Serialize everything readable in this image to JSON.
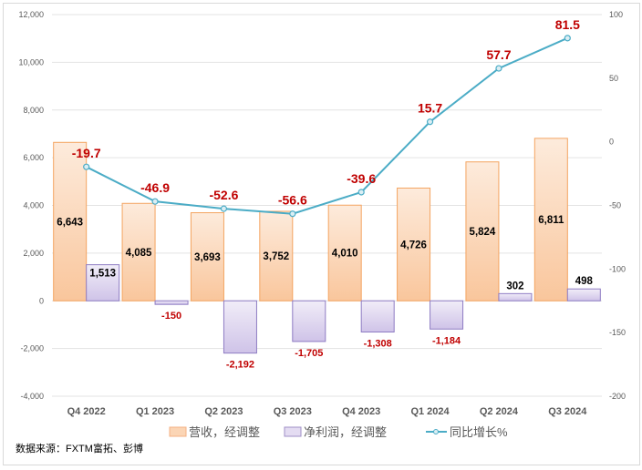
{
  "chart_data": {
    "type": "bar",
    "categories": [
      "Q4 2022",
      "Q1 2023",
      "Q2 2023",
      "Q3 2023",
      "Q4 2023",
      "Q1 2024",
      "Q2 2024",
      "Q3 2024"
    ],
    "series": [
      {
        "name": "营收，经调整",
        "type": "bar",
        "axis": "left",
        "values": [
          6643,
          4085,
          3693,
          3752,
          4010,
          4726,
          5824,
          6811
        ],
        "labels": [
          "6,643",
          "4,085",
          "3,693",
          "3,752",
          "4,010",
          "4,726",
          "5,824",
          "6,811"
        ],
        "color": "#f4b183"
      },
      {
        "name": "净利润，经调整",
        "type": "bar",
        "axis": "left",
        "values": [
          1513,
          -150,
          -2192,
          -1705,
          -1308,
          -1184,
          302,
          498
        ],
        "labels": [
          "1,513",
          "-150",
          "-2,192",
          "-1,705",
          "-1,308",
          "-1,184",
          "302",
          "498"
        ],
        "color": "#b4a7d6"
      },
      {
        "name": "同比增长%",
        "type": "line",
        "axis": "right",
        "values": [
          -19.7,
          -46.9,
          -52.6,
          -56.6,
          -39.6,
          15.7,
          57.7,
          81.5
        ],
        "labels": [
          "-19.7",
          "-46.9",
          "-52.6",
          "-56.6",
          "-39.6",
          "15.7",
          "57.7",
          "81.5"
        ],
        "color": "#4bacc6"
      }
    ],
    "left_axis": {
      "ylim": [
        -4000,
        12000
      ],
      "ticks": [
        "-4,000",
        "-2,000",
        "0",
        "2,000",
        "4,000",
        "6,000",
        "8,000",
        "10,000",
        "12,000"
      ]
    },
    "right_axis": {
      "ylim": [
        -200,
        100
      ],
      "ticks": [
        "-200",
        "-150",
        "-100",
        "-50",
        "0",
        "50",
        "100"
      ]
    },
    "grid": true,
    "legend": "bottom"
  },
  "source": "数据来源：FXTM富拓、彭博"
}
